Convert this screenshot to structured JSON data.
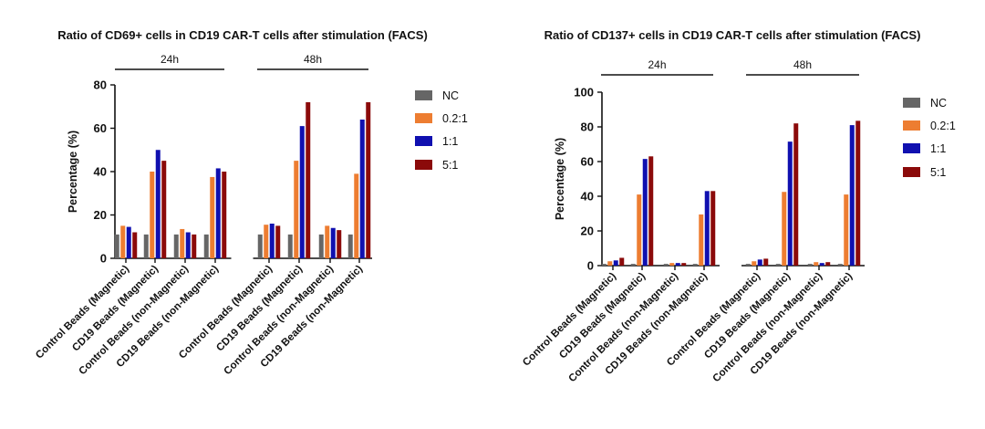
{
  "chart_data": [
    {
      "type": "bar",
      "title": "Ratio of CD69+ cells in CD19 CAR-T cells after stimulation  (FACS)",
      "ylabel": "Percentage (%)",
      "xlabel": "",
      "ylim": [
        0,
        80
      ],
      "yticks": [
        0,
        20,
        40,
        60,
        80
      ],
      "groups": [
        {
          "label": "24h",
          "categories": [
            "Control Beads (Magnetic)",
            "CD19 Beads (Magnetic)",
            "Control Beads (non-Magnetic)",
            "CD19 Beads (non-Magnetic)"
          ]
        },
        {
          "label": "48h",
          "categories": [
            "Control Beads (Magnetic)",
            "CD19 Beads (Magnetic)",
            "Control Beads (non-Magnetic)",
            "CD19 Beads (non-Magnetic)"
          ]
        }
      ],
      "series": [
        {
          "name": "NC",
          "color": "#666666",
          "values": [
            11,
            11,
            11,
            11,
            11,
            11,
            11,
            11
          ]
        },
        {
          "name": "0.2:1",
          "color": "#ED7D31",
          "values": [
            15,
            40,
            13.5,
            37.5,
            15.5,
            45,
            15,
            39
          ]
        },
        {
          "name": "1:1",
          "color": "#1010B0",
          "values": [
            14.5,
            50,
            12,
            41.5,
            16,
            61,
            14,
            64
          ]
        },
        {
          "name": "5:1",
          "color": "#8B0A0A",
          "values": [
            12,
            45,
            11,
            40,
            15,
            72,
            13,
            72
          ]
        }
      ]
    },
    {
      "type": "bar",
      "title": "Ratio of CD137+ cells in CD19 CAR-T cells after stimulation  (FACS)",
      "ylabel": "Percentage (%)",
      "xlabel": "",
      "ylim": [
        0,
        100
      ],
      "yticks": [
        0,
        20,
        40,
        60,
        80,
        100
      ],
      "groups": [
        {
          "label": "24h",
          "categories": [
            "Control Beads (Magnetic)",
            "CD19 Beads (Magnetic)",
            "Control Beads (non-Magnetic)",
            "CD19 Beads (non-Magnetic)"
          ]
        },
        {
          "label": "48h",
          "categories": [
            "Control Beads (Magnetic)",
            "CD19 Beads (Magnetic)",
            "Control Beads (non-Magnetic)",
            "CD19 Beads (non-Magnetic)"
          ]
        }
      ],
      "series": [
        {
          "name": "NC",
          "color": "#666666",
          "values": [
            1,
            1,
            1,
            1,
            1,
            1,
            1,
            1
          ]
        },
        {
          "name": "0.2:1",
          "color": "#ED7D31",
          "values": [
            2.5,
            41,
            1.5,
            29.5,
            2.5,
            42.5,
            2,
            41
          ]
        },
        {
          "name": "1:1",
          "color": "#1010B0",
          "values": [
            3,
            61.5,
            1.5,
            43,
            3.5,
            71.5,
            1.5,
            81
          ]
        },
        {
          "name": "5:1",
          "color": "#8B0A0A",
          "values": [
            4.5,
            63,
            1.5,
            43,
            4,
            82,
            2,
            83.5
          ]
        }
      ]
    }
  ]
}
